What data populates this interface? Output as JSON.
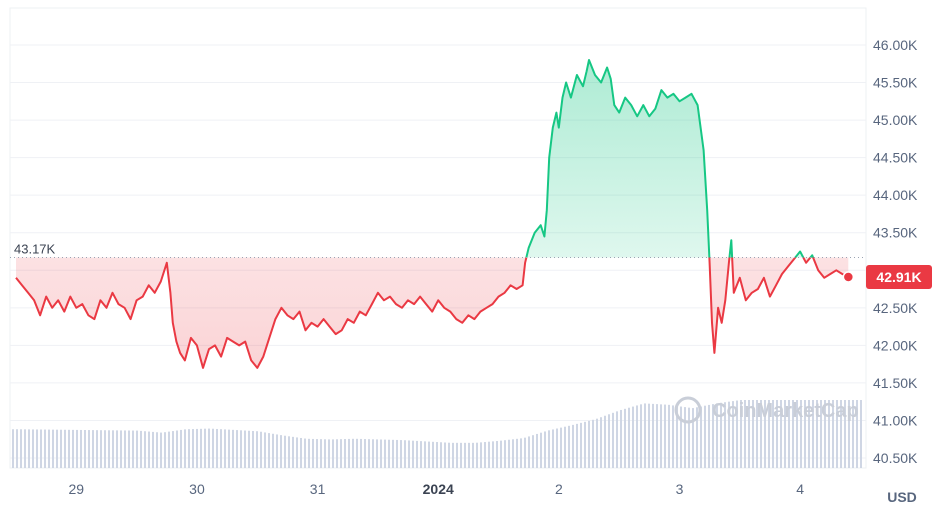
{
  "chart_data": {
    "type": "area",
    "currency_label": "USD",
    "watermark": "CoinMarketCap",
    "reference": {
      "label": "43.17K",
      "value": 43170
    },
    "current": {
      "label": "42.91K",
      "value": 42910
    },
    "x_ticks": [
      {
        "label": "29",
        "t": 0.5,
        "bold": false
      },
      {
        "label": "30",
        "t": 1.5,
        "bold": false
      },
      {
        "label": "31",
        "t": 2.5,
        "bold": false
      },
      {
        "label": "2024",
        "t": 3.5,
        "bold": true
      },
      {
        "label": "2",
        "t": 4.5,
        "bold": false
      },
      {
        "label": "3",
        "t": 5.5,
        "bold": false
      },
      {
        "label": "4",
        "t": 6.5,
        "bold": false
      }
    ],
    "y_ticks": [
      {
        "label": "46.00K",
        "value": 46000
      },
      {
        "label": "45.50K",
        "value": 45500
      },
      {
        "label": "45.00K",
        "value": 45000
      },
      {
        "label": "44.50K",
        "value": 44500
      },
      {
        "label": "44.00K",
        "value": 44000
      },
      {
        "label": "43.50K",
        "value": 43500
      },
      {
        "label": "43.00K",
        "value": 43000
      },
      {
        "label": "42.50K",
        "value": 42500
      },
      {
        "label": "42.00K",
        "value": 42000
      },
      {
        "label": "41.50K",
        "value": 41500
      },
      {
        "label": "41.00K",
        "value": 41000
      },
      {
        "label": "40.50K",
        "value": 40500
      }
    ],
    "y_range": [
      40500,
      46000
    ],
    "x_range": [
      0,
      6.98
    ],
    "price_series": {
      "name": "Price",
      "points": [
        [
          0.0,
          42900
        ],
        [
          0.05,
          42800
        ],
        [
          0.1,
          42700
        ],
        [
          0.15,
          42600
        ],
        [
          0.2,
          42400
        ],
        [
          0.25,
          42650
        ],
        [
          0.3,
          42500
        ],
        [
          0.35,
          42600
        ],
        [
          0.4,
          42450
        ],
        [
          0.45,
          42650
        ],
        [
          0.5,
          42500
        ],
        [
          0.55,
          42550
        ],
        [
          0.6,
          42400
        ],
        [
          0.65,
          42350
        ],
        [
          0.7,
          42600
        ],
        [
          0.75,
          42500
        ],
        [
          0.8,
          42700
        ],
        [
          0.85,
          42550
        ],
        [
          0.9,
          42500
        ],
        [
          0.95,
          42350
        ],
        [
          1.0,
          42600
        ],
        [
          1.05,
          42650
        ],
        [
          1.1,
          42800
        ],
        [
          1.15,
          42700
        ],
        [
          1.2,
          42850
        ],
        [
          1.25,
          43100
        ],
        [
          1.28,
          42700
        ],
        [
          1.3,
          42300
        ],
        [
          1.33,
          42050
        ],
        [
          1.36,
          41900
        ],
        [
          1.4,
          41800
        ],
        [
          1.45,
          42100
        ],
        [
          1.5,
          42000
        ],
        [
          1.55,
          41700
        ],
        [
          1.6,
          41950
        ],
        [
          1.65,
          42000
        ],
        [
          1.7,
          41850
        ],
        [
          1.75,
          42100
        ],
        [
          1.8,
          42050
        ],
        [
          1.85,
          42000
        ],
        [
          1.9,
          42050
        ],
        [
          1.95,
          41800
        ],
        [
          2.0,
          41700
        ],
        [
          2.05,
          41850
        ],
        [
          2.1,
          42100
        ],
        [
          2.15,
          42350
        ],
        [
          2.2,
          42500
        ],
        [
          2.25,
          42400
        ],
        [
          2.3,
          42350
        ],
        [
          2.35,
          42450
        ],
        [
          2.4,
          42200
        ],
        [
          2.45,
          42300
        ],
        [
          2.5,
          42250
        ],
        [
          2.55,
          42350
        ],
        [
          2.6,
          42250
        ],
        [
          2.65,
          42150
        ],
        [
          2.7,
          42200
        ],
        [
          2.75,
          42350
        ],
        [
          2.8,
          42300
        ],
        [
          2.85,
          42450
        ],
        [
          2.9,
          42400
        ],
        [
          2.95,
          42550
        ],
        [
          3.0,
          42700
        ],
        [
          3.05,
          42600
        ],
        [
          3.1,
          42650
        ],
        [
          3.15,
          42550
        ],
        [
          3.2,
          42500
        ],
        [
          3.25,
          42600
        ],
        [
          3.3,
          42550
        ],
        [
          3.35,
          42650
        ],
        [
          3.4,
          42550
        ],
        [
          3.45,
          42450
        ],
        [
          3.5,
          42600
        ],
        [
          3.55,
          42500
        ],
        [
          3.6,
          42450
        ],
        [
          3.65,
          42350
        ],
        [
          3.7,
          42300
        ],
        [
          3.75,
          42400
        ],
        [
          3.8,
          42350
        ],
        [
          3.85,
          42450
        ],
        [
          3.9,
          42500
        ],
        [
          3.95,
          42550
        ],
        [
          4.0,
          42650
        ],
        [
          4.05,
          42700
        ],
        [
          4.1,
          42800
        ],
        [
          4.15,
          42750
        ],
        [
          4.2,
          42800
        ],
        [
          4.22,
          43100
        ],
        [
          4.25,
          43300
        ],
        [
          4.3,
          43500
        ],
        [
          4.35,
          43600
        ],
        [
          4.38,
          43450
        ],
        [
          4.4,
          43800
        ],
        [
          4.42,
          44500
        ],
        [
          4.45,
          44900
        ],
        [
          4.48,
          45100
        ],
        [
          4.5,
          44900
        ],
        [
          4.53,
          45300
        ],
        [
          4.56,
          45500
        ],
        [
          4.6,
          45300
        ],
        [
          4.65,
          45600
        ],
        [
          4.7,
          45450
        ],
        [
          4.73,
          45650
        ],
        [
          4.75,
          45800
        ],
        [
          4.8,
          45600
        ],
        [
          4.85,
          45500
        ],
        [
          4.9,
          45700
        ],
        [
          4.93,
          45550
        ],
        [
          4.96,
          45200
        ],
        [
          5.0,
          45100
        ],
        [
          5.05,
          45300
        ],
        [
          5.1,
          45200
        ],
        [
          5.15,
          45050
        ],
        [
          5.2,
          45200
        ],
        [
          5.25,
          45050
        ],
        [
          5.3,
          45150
        ],
        [
          5.35,
          45400
        ],
        [
          5.4,
          45300
        ],
        [
          5.45,
          45350
        ],
        [
          5.5,
          45250
        ],
        [
          5.55,
          45300
        ],
        [
          5.6,
          45350
        ],
        [
          5.65,
          45200
        ],
        [
          5.7,
          44600
        ],
        [
          5.73,
          43800
        ],
        [
          5.75,
          43100
        ],
        [
          5.77,
          42300
        ],
        [
          5.79,
          41900
        ],
        [
          5.82,
          42500
        ],
        [
          5.85,
          42300
        ],
        [
          5.88,
          42600
        ],
        [
          5.91,
          43100
        ],
        [
          5.93,
          43400
        ],
        [
          5.95,
          42700
        ],
        [
          6.0,
          42900
        ],
        [
          6.05,
          42600
        ],
        [
          6.1,
          42700
        ],
        [
          6.15,
          42750
        ],
        [
          6.2,
          42900
        ],
        [
          6.25,
          42650
        ],
        [
          6.3,
          42800
        ],
        [
          6.35,
          42950
        ],
        [
          6.4,
          43050
        ],
        [
          6.45,
          43150
        ],
        [
          6.5,
          43250
        ],
        [
          6.55,
          43100
        ],
        [
          6.6,
          43200
        ],
        [
          6.65,
          43000
        ],
        [
          6.7,
          42900
        ],
        [
          6.75,
          42950
        ],
        [
          6.8,
          43000
        ],
        [
          6.85,
          42950
        ],
        [
          6.9,
          42910
        ]
      ]
    },
    "volume_series": {
      "name": "Volume",
      "min": 0,
      "max": 1,
      "points": [
        [
          0.0,
          0.57
        ],
        [
          0.5,
          0.56
        ],
        [
          1.0,
          0.55
        ],
        [
          1.2,
          0.52
        ],
        [
          1.4,
          0.57
        ],
        [
          1.6,
          0.58
        ],
        [
          1.8,
          0.56
        ],
        [
          2.0,
          0.54
        ],
        [
          2.2,
          0.48
        ],
        [
          2.4,
          0.43
        ],
        [
          2.6,
          0.42
        ],
        [
          2.8,
          0.43
        ],
        [
          3.0,
          0.42
        ],
        [
          3.2,
          0.41
        ],
        [
          3.4,
          0.39
        ],
        [
          3.6,
          0.37
        ],
        [
          3.8,
          0.37
        ],
        [
          4.0,
          0.4
        ],
        [
          4.2,
          0.44
        ],
        [
          4.4,
          0.55
        ],
        [
          4.6,
          0.63
        ],
        [
          4.8,
          0.72
        ],
        [
          5.0,
          0.85
        ],
        [
          5.2,
          0.95
        ],
        [
          5.4,
          0.93
        ],
        [
          5.6,
          0.88
        ],
        [
          5.8,
          0.95
        ],
        [
          6.0,
          1.0
        ],
        [
          6.2,
          1.0
        ],
        [
          6.5,
          1.0
        ],
        [
          6.8,
          1.0
        ],
        [
          6.98,
          1.0
        ]
      ]
    }
  }
}
